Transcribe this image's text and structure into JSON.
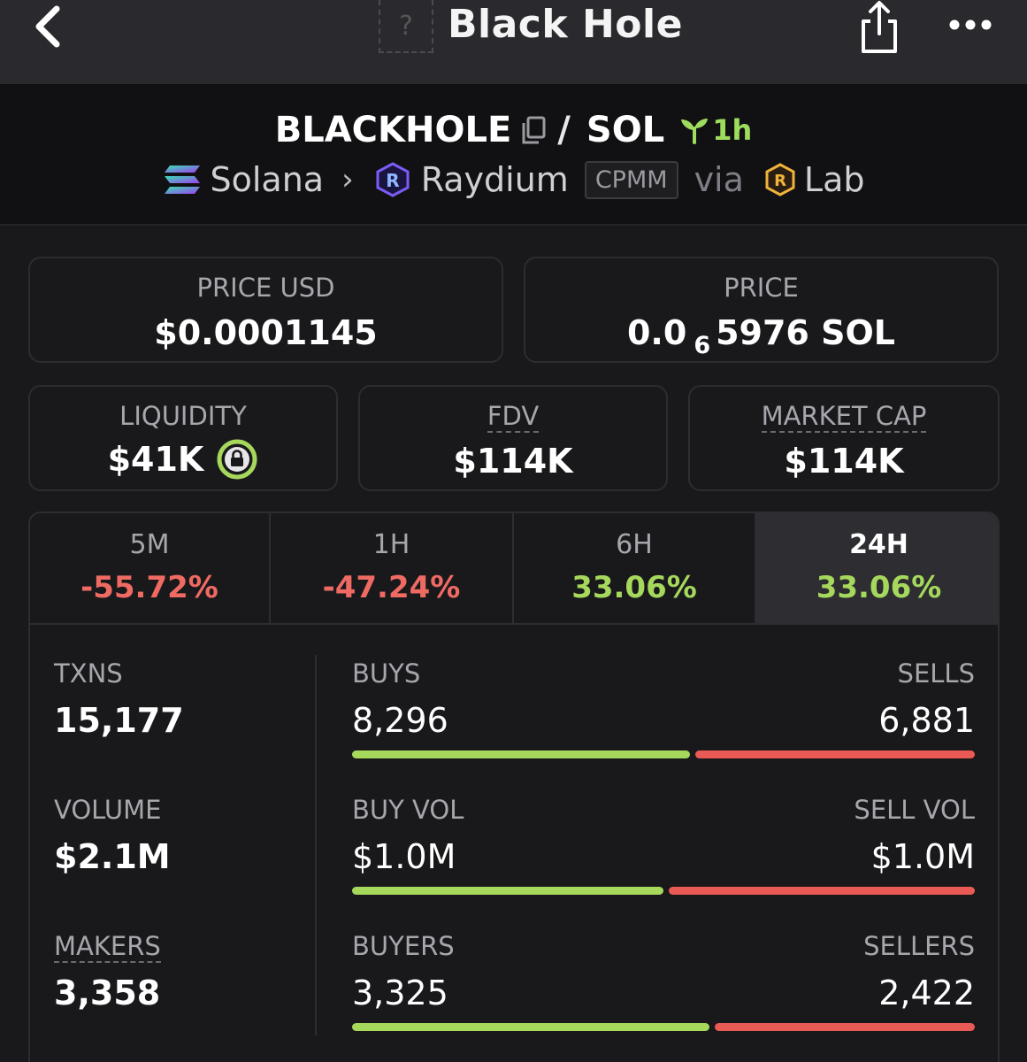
{
  "header": {
    "title": "Black Hole",
    "token_placeholder": "?"
  },
  "pair": {
    "base": "BLACKHOLE",
    "separator": "/",
    "quote": "SOL",
    "age": "1h",
    "chain": "Solana",
    "dex": "Raydium",
    "pool_type": "CPMM",
    "via_label": "via",
    "via": "Lab"
  },
  "prices": {
    "price_usd_label": "PRICE USD",
    "price_usd": "$0.0001145",
    "price_label": "PRICE",
    "price_prefix": "0.0",
    "price_zero_count": "6",
    "price_suffix": "5976 SOL"
  },
  "metrics": {
    "liquidity_label": "LIQUIDITY",
    "liquidity": "$41K",
    "fdv_label": "FDV",
    "fdv": "$114K",
    "mcap_label": "MARKET CAP",
    "mcap": "$114K"
  },
  "timeframes": [
    {
      "label": "5M",
      "change": "-55.72%"
    },
    {
      "label": "1H",
      "change": "-47.24%"
    },
    {
      "label": "6H",
      "change": "33.06%"
    },
    {
      "label": "24H",
      "change": "33.06%"
    }
  ],
  "stats": {
    "txns_label": "TXNS",
    "txns": "15,177",
    "buys_label": "BUYS",
    "buys": "8,296",
    "sells_label": "SELLS",
    "sells": "6,881",
    "buys_fraction": 0.547,
    "volume_label": "VOLUME",
    "volume": "$2.1M",
    "buy_vol_label": "BUY VOL",
    "buy_vol": "$1.0M",
    "sell_vol_label": "SELL VOL",
    "sell_vol": "$1.0M",
    "buy_vol_fraction": 0.504,
    "makers_label": "MAKERS",
    "makers": "3,358",
    "buyers_label": "BUYERS",
    "buyers": "3,325",
    "sellers_label": "SELLERS",
    "sellers": "2,422",
    "buyers_fraction": 0.579
  },
  "colors": {
    "positive": "#a6d85c",
    "negative": "#ef6a62",
    "accent_age": "#9ddc5c"
  }
}
